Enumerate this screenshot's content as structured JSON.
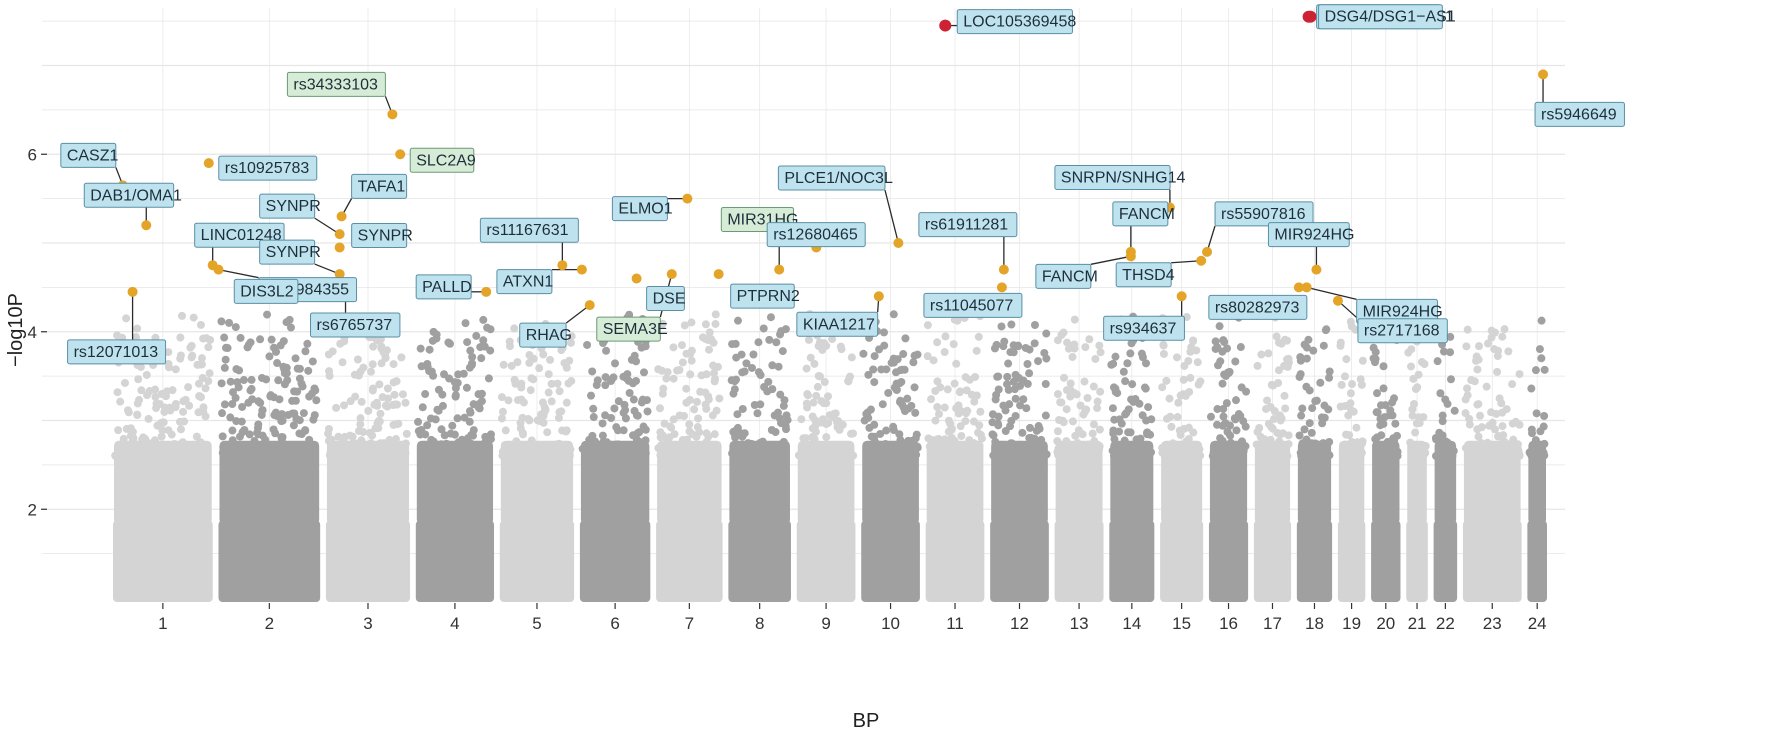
{
  "colors": {
    "background": "#ffffff",
    "grid": "#e6e6e6",
    "bg_light": "#d4d4d4",
    "bg_dark": "#a0a0a0",
    "suggestive": "#e3a428",
    "significant": "#cc2233",
    "label_blue_fill": "#bfe3ee",
    "label_blue_stroke": "#5a8fa6",
    "label_green_fill": "#d6ecd6",
    "label_green_stroke": "#6a9a76"
  },
  "chart_data": {
    "type": "scatter",
    "title": "",
    "xlabel": "BP",
    "ylabel": "−log10P",
    "y_ticks": [
      2,
      4,
      6
    ],
    "ylim": [
      1,
      7.6
    ],
    "grid": true,
    "legend": "none",
    "chromosomes": [
      {
        "label": "1",
        "start": 0,
        "end": 245
      },
      {
        "label": "2",
        "start": 270,
        "end": 520
      },
      {
        "label": "3",
        "start": 545,
        "end": 750
      },
      {
        "label": "4",
        "start": 775,
        "end": 965
      },
      {
        "label": "5",
        "start": 990,
        "end": 1170
      },
      {
        "label": "6",
        "start": 1195,
        "end": 1365
      },
      {
        "label": "7",
        "start": 1390,
        "end": 1550
      },
      {
        "label": "8",
        "start": 1575,
        "end": 1725
      },
      {
        "label": "9",
        "start": 1750,
        "end": 1890
      },
      {
        "label": "10",
        "start": 1915,
        "end": 2055
      },
      {
        "label": "11",
        "start": 2080,
        "end": 2220
      },
      {
        "label": "12",
        "start": 2245,
        "end": 2385
      },
      {
        "label": "13",
        "start": 2410,
        "end": 2525
      },
      {
        "label": "14",
        "start": 2550,
        "end": 2655
      },
      {
        "label": "15",
        "start": 2680,
        "end": 2780
      },
      {
        "label": "16",
        "start": 2805,
        "end": 2895
      },
      {
        "label": "17",
        "start": 2920,
        "end": 3005
      },
      {
        "label": "18",
        "start": 3030,
        "end": 3110
      },
      {
        "label": "19",
        "start": 3135,
        "end": 3195
      },
      {
        "label": "20",
        "start": 3220,
        "end": 3285
      },
      {
        "label": "21",
        "start": 3310,
        "end": 3355
      },
      {
        "label": "22",
        "start": 3380,
        "end": 3430
      },
      {
        "label": "23",
        "start": 3455,
        "end": 3595
      },
      {
        "label": "24",
        "start": 3620,
        "end": 3660
      }
    ],
    "highlight_snps": [
      {
        "name": "LOC105369458",
        "chr": "11",
        "pos": 2125,
        "p": 7.45,
        "sig": true
      },
      {
        "name": "DSG1/DSG1−AS1",
        "chr": "18",
        "pos": 3055,
        "p": 7.55,
        "sig": true
      },
      {
        "name": "DSG4/DSG1−AS1",
        "chr": "18",
        "pos": 3060,
        "p": 7.55,
        "sig": true
      },
      {
        "name": "rs5946649",
        "chr": "24",
        "pos": 3655,
        "p": 6.9,
        "sig": false
      },
      {
        "name": "CASZ1",
        "chr": "1",
        "pos": 20,
        "p": 5.65,
        "sig": false
      },
      {
        "name": "DAB1/OMA1",
        "chr": "1",
        "pos": 80,
        "p": 5.2,
        "sig": false
      },
      {
        "name": "LINC01248",
        "chr": "1",
        "pos": 250,
        "p": 4.75,
        "sig": false
      },
      {
        "name": "rs16984355",
        "chr": "2",
        "pos": 265,
        "p": 4.7,
        "sig": false
      },
      {
        "name": "rs12071013",
        "chr": "1",
        "pos": 45,
        "p": 4.45,
        "sig": false
      },
      {
        "name": "rs10925783",
        "chr": "2",
        "pos": 240,
        "p": 5.9,
        "sig": false
      },
      {
        "name": "rs34333103",
        "chr": "3",
        "pos": 710,
        "p": 6.45,
        "sig": false
      },
      {
        "name": "SLC2A9",
        "chr": "3",
        "pos": 730,
        "p": 6.0,
        "sig": false
      },
      {
        "name": "TAFA1",
        "chr": "3",
        "pos": 580,
        "p": 5.3,
        "sig": false
      },
      {
        "name": "SYNPR",
        "chr": "3",
        "pos": 575,
        "p": 5.1,
        "sig": false
      },
      {
        "name": "SYNPR",
        "chr": "3",
        "pos": 575,
        "p": 4.95,
        "sig": false
      },
      {
        "name": "SYNPR",
        "chr": "3",
        "pos": 575,
        "p": 4.65,
        "sig": false
      },
      {
        "name": "DIS3L2",
        "chr": "2",
        "pos": 510,
        "p": 4.5,
        "sig": false
      },
      {
        "name": "rs6765737",
        "chr": "3",
        "pos": 590,
        "p": 4.55,
        "sig": false
      },
      {
        "name": "PALLD",
        "chr": "4",
        "pos": 950,
        "p": 4.45,
        "sig": false
      },
      {
        "name": "ELMO1",
        "chr": "7",
        "pos": 1465,
        "p": 5.5,
        "sig": false
      },
      {
        "name": "rs11167631",
        "chr": "5",
        "pos": 1145,
        "p": 4.75,
        "sig": false
      },
      {
        "name": "ATXN1",
        "chr": "6",
        "pos": 1195,
        "p": 4.7,
        "sig": false
      },
      {
        "name": "RHAG",
        "chr": "6",
        "pos": 1215,
        "p": 4.3,
        "sig": false
      },
      {
        "name": "DSE",
        "chr": "6",
        "pos": 1335,
        "p": 4.6,
        "sig": false
      },
      {
        "name": "SEMA3E",
        "chr": "7",
        "pos": 1425,
        "p": 4.65,
        "sig": false
      },
      {
        "name": "MIR31HG",
        "chr": "9",
        "pos": 1795,
        "p": 4.95,
        "sig": false
      },
      {
        "name": "PTPRN2",
        "chr": "7",
        "pos": 1545,
        "p": 4.65,
        "sig": false
      },
      {
        "name": "rs12680465",
        "chr": "8",
        "pos": 1700,
        "p": 4.7,
        "sig": false
      },
      {
        "name": "KIAA1217",
        "chr": "10",
        "pos": 1955,
        "p": 4.4,
        "sig": false
      },
      {
        "name": "PLCE1/NOC3L",
        "chr": "10",
        "pos": 2005,
        "p": 5.0,
        "sig": false
      },
      {
        "name": "rs61911281",
        "chr": "12",
        "pos": 2275,
        "p": 4.7,
        "sig": false
      },
      {
        "name": "rs11045077",
        "chr": "12",
        "pos": 2270,
        "p": 4.5,
        "sig": false
      },
      {
        "name": "SNRPN/SNHG14",
        "chr": "15",
        "pos": 2700,
        "p": 5.4,
        "sig": false
      },
      {
        "name": "FANCM",
        "chr": "14",
        "pos": 2600,
        "p": 4.9,
        "sig": false
      },
      {
        "name": "FANCM",
        "chr": "14",
        "pos": 2600,
        "p": 4.85,
        "sig": false
      },
      {
        "name": "rs55907816",
        "chr": "15",
        "pos": 2795,
        "p": 4.9,
        "sig": false
      },
      {
        "name": "THSD4",
        "chr": "15",
        "pos": 2780,
        "p": 4.8,
        "sig": false
      },
      {
        "name": "rs934637",
        "chr": "15",
        "pos": 2730,
        "p": 4.4,
        "sig": false
      },
      {
        "name": "MIR924HG",
        "chr": "18",
        "pos": 3075,
        "p": 4.7,
        "sig": false
      },
      {
        "name": "MIR924HG",
        "chr": "18",
        "pos": 3050,
        "p": 4.5,
        "sig": false
      },
      {
        "name": "rs80282973",
        "chr": "18",
        "pos": 3030,
        "p": 4.5,
        "sig": false
      },
      {
        "name": "rs2717168",
        "chr": "18",
        "pos": 3130,
        "p": 4.35,
        "sig": false
      }
    ]
  }
}
